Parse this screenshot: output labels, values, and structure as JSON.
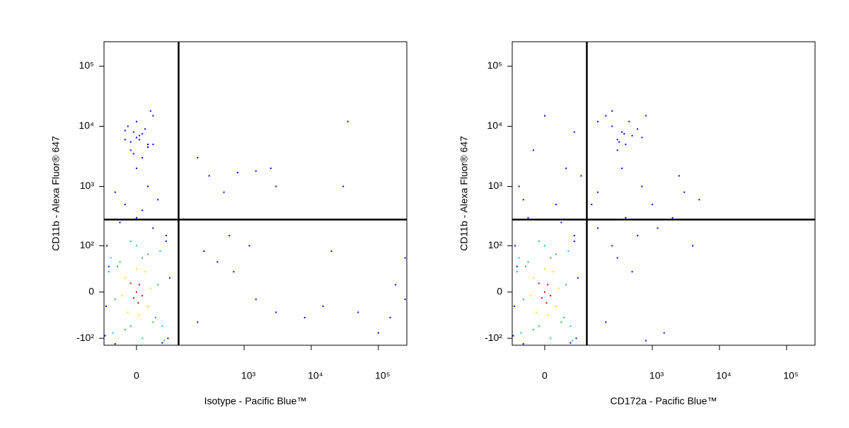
{
  "chart_data": [
    {
      "type": "scatter",
      "xlabel": "Isotype - Pacific Blue™",
      "ylabel": "CD11b - Alexa Fluor® 647",
      "xscale": {
        "type": "arcsinh",
        "cofactor": 50
      },
      "yscale": {
        "type": "arcsinh",
        "cofactor": 35
      },
      "xlim": [
        -68,
        265000
      ],
      "ylim": [
        -132,
        255000
      ],
      "xticks": [
        0,
        {
          "value": 1000,
          "label": "10³"
        },
        {
          "value": 10000,
          "label": "10⁴"
        },
        {
          "value": 100000,
          "label": "10⁵"
        }
      ],
      "yticks": [
        {
          "value": -100,
          "label": "-10²"
        },
        0,
        {
          "value": 100,
          "label": "10²"
        },
        {
          "value": 1000,
          "label": "10³"
        },
        {
          "value": 10000,
          "label": "10⁴"
        },
        {
          "value": 100000,
          "label": "10⁵"
        }
      ],
      "gates": {
        "x": 100,
        "y": 280
      },
      "series": [
        {
          "color": "#0000ff",
          "x": [
            -60,
            60,
            65,
            -65,
            30,
            -30,
            0,
            10,
            -20,
            40,
            -40,
            20,
            0,
            10,
            -10,
            20,
            -20,
            5,
            -5,
            15,
            0,
            30,
            -10,
            0,
            10,
            20,
            -20,
            30,
            -15,
            5,
            25,
            -5,
            -55,
            70,
            -62,
            50,
            -40,
            60,
            200,
            300,
            500,
            800,
            1500,
            2500,
            3000,
            35000,
            30000,
            200,
            400,
            700,
            1500,
            3000,
            8000,
            15000,
            50000,
            150000,
            250000,
            600,
            1200,
            20000,
            250,
            100000,
            180000,
            250000
          ],
          "values": [
            100,
            120,
            -100,
            -90,
            200,
            250,
            300,
            400,
            500,
            600,
            800,
            1000,
            2000,
            3000,
            4000,
            5000,
            6000,
            7000,
            8000,
            9000,
            12000,
            15000,
            5500,
            6500,
            7500,
            4500,
            8500,
            5000,
            10000,
            6000,
            18000,
            3500,
            40,
            20,
            -20,
            -120,
            -125,
            150,
            3000,
            1500,
            800,
            1700,
            1800,
            2000,
            1000,
            12000,
            1000,
            -50,
            50,
            30,
            -10,
            -30,
            -40,
            -20,
            -30,
            -40,
            -10,
            150,
            100,
            80,
            80,
            -80,
            10,
            60
          ]
        },
        {
          "color": "#00c8e0",
          "x": [
            -50,
            50,
            45,
            -45,
            0,
            10,
            -10,
            55,
            -55,
            20
          ],
          "values": [
            60,
            -60,
            80,
            -80,
            100,
            -100,
            120,
            -110,
            30,
            -20
          ]
        },
        {
          "color": "#20c040",
          "x": [
            -35,
            35,
            30,
            -30,
            40,
            -40,
            10,
            -10,
            20,
            -20
          ],
          "values": [
            40,
            -40,
            -50,
            50,
            10,
            -10,
            60,
            -60,
            70,
            -70
          ]
        },
        {
          "color": "#f0e000",
          "x": [
            -20,
            20,
            15,
            -15,
            25,
            -25,
            0,
            5
          ],
          "values": [
            20,
            -20,
            30,
            -30,
            5,
            -5,
            35,
            -35
          ]
        },
        {
          "color": "#e00000",
          "x": [
            0,
            5,
            -5,
            10,
            -10,
            3
          ],
          "values": [
            0,
            10,
            -8,
            -5,
            12,
            -15
          ]
        }
      ]
    },
    {
      "type": "scatter",
      "xlabel": "CD172a - Pacific Blue™",
      "ylabel": "CD11b - Alexa Fluor® 647",
      "xscale": {
        "type": "arcsinh",
        "cofactor": 50
      },
      "yscale": {
        "type": "arcsinh",
        "cofactor": 35
      },
      "xlim": [
        -68,
        265000
      ],
      "ylim": [
        -132,
        255000
      ],
      "xticks": [
        0,
        {
          "value": 1000,
          "label": "10³"
        },
        {
          "value": 10000,
          "label": "10⁴"
        },
        {
          "value": 100000,
          "label": "10⁵"
        }
      ],
      "yticks": [
        {
          "value": -100,
          "label": "-10²"
        },
        0,
        {
          "value": 100,
          "label": "10²"
        },
        {
          "value": 1000,
          "label": "10³"
        },
        {
          "value": 10000,
          "label": "10⁴"
        },
        {
          "value": 100000,
          "label": "10⁵"
        }
      ],
      "gates": {
        "x": 100,
        "y": 280
      },
      "series": [
        {
          "color": "#0000ff",
          "x": [
            -60,
            60,
            65,
            -65,
            -55,
            70,
            -62,
            50,
            -40,
            60,
            -30,
            20,
            -50,
            40,
            -20,
            60,
            0,
            -40,
            80,
            30,
            300,
            350,
            400,
            250,
            500,
            450,
            200,
            600,
            300,
            700,
            380,
            320,
            150,
            800,
            250,
            150,
            250,
            400,
            600,
            1000,
            2000,
            3000,
            5000,
            200,
            500,
            1500,
            800,
            300,
            1200,
            4000,
            150,
            350,
            120,
            2500,
            700
          ],
          "values": [
            100,
            120,
            -100,
            -90,
            40,
            20,
            -20,
            -120,
            -125,
            150,
            300,
            500,
            1000,
            2000,
            4000,
            8000,
            15000,
            600,
            1500,
            250,
            6000,
            8000,
            5000,
            10000,
            7000,
            12000,
            15000,
            9000,
            4000,
            6500,
            7500,
            5500,
            12000,
            15000,
            18000,
            200,
            100,
            300,
            150,
            500,
            300,
            800,
            600,
            -50,
            30,
            -80,
            -110,
            60,
            200,
            100,
            800,
            2000,
            500,
            1500,
            1000
          ]
        },
        {
          "color": "#00c8e0",
          "x": [
            -50,
            50,
            45,
            -45,
            0,
            10,
            -10,
            55,
            -55,
            20
          ],
          "values": [
            60,
            -60,
            80,
            -80,
            100,
            -100,
            120,
            -110,
            30,
            -20
          ]
        },
        {
          "color": "#20c040",
          "x": [
            -35,
            35,
            30,
            -30,
            40,
            -40,
            10,
            -10,
            20,
            -20
          ],
          "values": [
            40,
            -40,
            -50,
            50,
            10,
            -10,
            60,
            -60,
            70,
            -70
          ]
        },
        {
          "color": "#f0e000",
          "x": [
            -20,
            20,
            15,
            -15,
            25,
            -25,
            0,
            5
          ],
          "values": [
            20,
            -20,
            30,
            -30,
            5,
            -5,
            35,
            -35
          ]
        },
        {
          "color": "#e00000",
          "x": [
            0,
            5,
            -5,
            10,
            -10,
            3
          ],
          "values": [
            0,
            10,
            -8,
            -5,
            12,
            -15
          ]
        }
      ]
    }
  ]
}
